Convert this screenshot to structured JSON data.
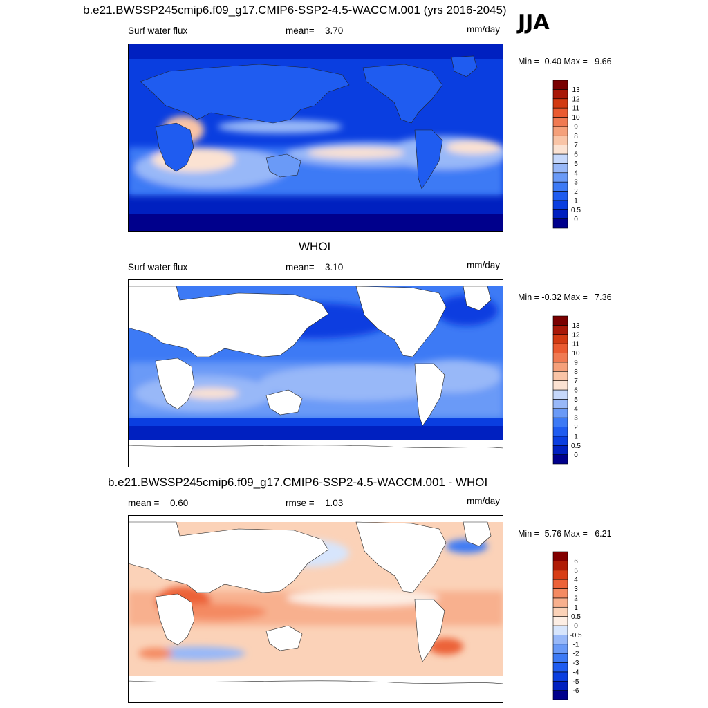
{
  "season": "JJA",
  "chart_data": [
    {
      "type": "heatmap",
      "title": "b.e21.BWSSP245cmip6.f09_g17.CMIP6-SSP2-4.5-WACCM.001 (yrs 2016-2045)",
      "left_label": "Surf water flux",
      "stat_label": "mean=",
      "stat_value": "3.70",
      "units": "mm/day",
      "min_label": "Min =",
      "min_value": "-0.40",
      "max_label": "Max =",
      "max_value": "9.66",
      "colorbar_levels": [
        "0",
        "0.5",
        "1",
        "2",
        "3",
        "4",
        "5",
        "6",
        "7",
        "8",
        "9",
        "10",
        "11",
        "12",
        "13"
      ],
      "colors": [
        "#00008c",
        "#0020c0",
        "#0a3ee0",
        "#1f5cf0",
        "#3d7af5",
        "#6a9af7",
        "#98b8f8",
        "#c6d8fb",
        "#fbe2d2",
        "#f9c4a6",
        "#f5a07a",
        "#f07a52",
        "#ea5a30",
        "#d23a12",
        "#a81808",
        "#7a0000"
      ],
      "legend": "right",
      "land_masked": false
    },
    {
      "type": "heatmap",
      "title": "WHOI",
      "left_label": "Surf water flux",
      "stat_label": "mean=",
      "stat_value": "3.10",
      "units": "mm/day",
      "min_label": "Min =",
      "min_value": "-0.32",
      "max_label": "Max =",
      "max_value": "7.36",
      "colorbar_levels": [
        "0",
        "0.5",
        "1",
        "2",
        "3",
        "4",
        "5",
        "6",
        "7",
        "8",
        "9",
        "10",
        "11",
        "12",
        "13"
      ],
      "colors": [
        "#00008c",
        "#0020c0",
        "#0a3ee0",
        "#1f5cf0",
        "#3d7af5",
        "#6a9af7",
        "#98b8f8",
        "#c6d8fb",
        "#fbe2d2",
        "#f9c4a6",
        "#f5a07a",
        "#f07a52",
        "#ea5a30",
        "#d23a12",
        "#a81808",
        "#7a0000"
      ],
      "legend": "right",
      "land_masked": true
    },
    {
      "type": "heatmap",
      "title": "b.e21.BWSSP245cmip6.f09_g17.CMIP6-SSP2-4.5-WACCM.001 - WHOI",
      "left_label": "mean =",
      "left_value": "0.60",
      "stat_label": "rmse =",
      "stat_value": "1.03",
      "units": "mm/day",
      "min_label": "Min =",
      "min_value": "-5.76",
      "max_label": "Max =",
      "max_value": "6.21",
      "colorbar_levels": [
        "-6",
        "-5",
        "-4",
        "-3",
        "-2",
        "-1",
        "-0.5",
        "0",
        "0.5",
        "1",
        "2",
        "3",
        "4",
        "5",
        "6"
      ],
      "colors": [
        "#00008c",
        "#0020c0",
        "#0a3ee0",
        "#1f5cf0",
        "#3d7af5",
        "#6a9af7",
        "#98b8f8",
        "#d7e5fc",
        "#fdeee4",
        "#fbd2b8",
        "#f8b08e",
        "#f48a62",
        "#ec6238",
        "#d83e16",
        "#b01c06",
        "#820000"
      ],
      "legend": "right",
      "land_masked": true
    }
  ]
}
